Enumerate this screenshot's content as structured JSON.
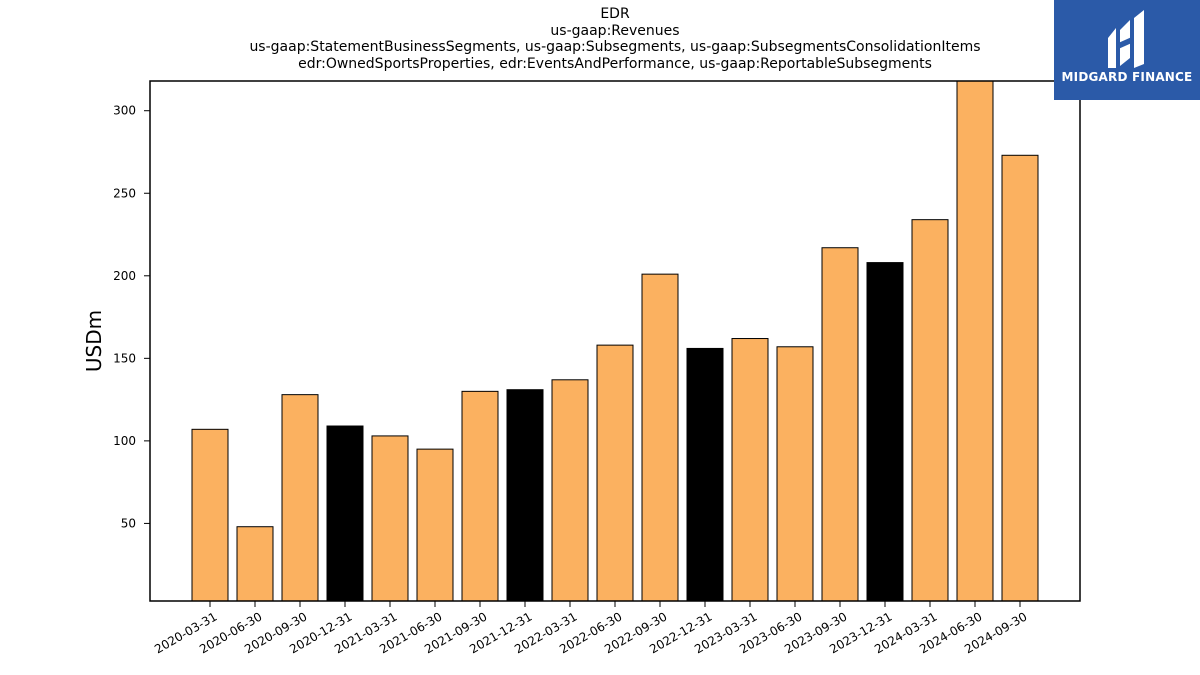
{
  "header": {
    "title_lines": [
      "EDR",
      "us-gaap:Revenues",
      "us-gaap:StatementBusinessSegments, us-gaap:Subsegments, us-gaap:SubsegmentsConsolidationItems",
      "edr:OwnedSportsProperties, edr:EventsAndPerformance, us-gaap:ReportableSubsegments"
    ]
  },
  "brand": {
    "name": "MIDGARD FINANCE",
    "logo_icon": "midgard-logo-icon",
    "background": "#2b5aa8"
  },
  "chart_data": {
    "type": "bar",
    "ylabel": "USDm",
    "xlabel": "",
    "ylim": [
      3,
      318
    ],
    "yticks": [
      50,
      100,
      150,
      200,
      250,
      300
    ],
    "grid": false,
    "categories": [
      "2020-03-31",
      "2020-06-30",
      "2020-09-30",
      "2020-12-31",
      "2021-03-31",
      "2021-06-30",
      "2021-09-30",
      "2021-12-31",
      "2022-03-31",
      "2022-06-30",
      "2022-09-30",
      "2022-12-31",
      "2023-03-31",
      "2023-06-30",
      "2023-09-30",
      "2023-12-31",
      "2024-03-31",
      "2024-06-30",
      "2024-09-30"
    ],
    "values": [
      107,
      48,
      128,
      109,
      103,
      95,
      130,
      131,
      137,
      158,
      201,
      156,
      162,
      157,
      217,
      208,
      234,
      318,
      273
    ],
    "highlight": [
      false,
      false,
      false,
      true,
      false,
      false,
      false,
      true,
      false,
      false,
      false,
      true,
      false,
      false,
      false,
      true,
      false,
      false,
      false
    ],
    "colors": {
      "bar": "#fbb160",
      "highlight": "#000000",
      "edge": "#000000"
    }
  }
}
